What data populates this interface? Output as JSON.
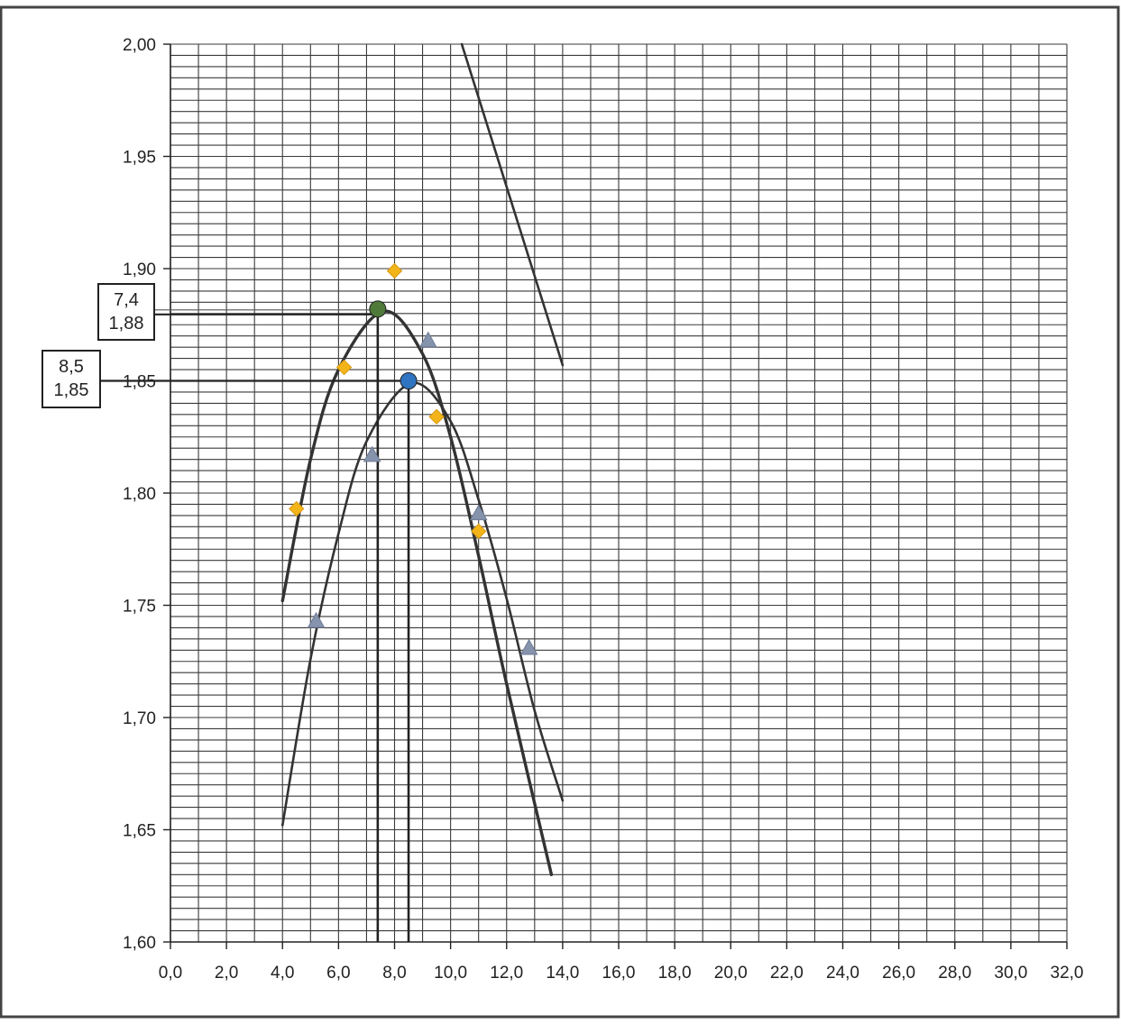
{
  "chart_data": {
    "type": "scatter",
    "xlim": [
      0,
      32
    ],
    "ylim": [
      1.6,
      2.0
    ],
    "x_ticks": [
      "0,0",
      "2,0",
      "4,0",
      "6,0",
      "8,0",
      "10,0",
      "12,0",
      "14,0",
      "16,0",
      "18,0",
      "20,0",
      "22,0",
      "24,0",
      "26,0",
      "28,0",
      "30,0",
      "32,0"
    ],
    "y_ticks": [
      "1,60",
      "1,65",
      "1,70",
      "1,75",
      "1,80",
      "1,85",
      "1,90",
      "1,95",
      "2,00"
    ],
    "grid": true,
    "series": [
      {
        "marker": "diamond",
        "color": "#f2b418",
        "points": [
          [
            4.5,
            1.793
          ],
          [
            6.2,
            1.856
          ],
          [
            8.0,
            1.899
          ],
          [
            9.5,
            1.834
          ],
          [
            11.0,
            1.783
          ]
        ]
      },
      {
        "marker": "triangle",
        "color": "#8593ad",
        "points": [
          [
            5.2,
            1.743
          ],
          [
            7.2,
            1.817
          ],
          [
            9.2,
            1.868
          ],
          [
            11.0,
            1.791
          ],
          [
            12.8,
            1.731
          ]
        ]
      }
    ],
    "curves": [
      {
        "kind": "parabola",
        "vertex": [
          7.6,
          1.881
        ],
        "points": [
          [
            4.0,
            1.752
          ],
          [
            5.0,
            1.815
          ],
          [
            6.0,
            1.855
          ],
          [
            7.6,
            1.881
          ],
          [
            9.0,
            1.862
          ],
          [
            10.0,
            1.825
          ],
          [
            11.0,
            1.772
          ],
          [
            12.0,
            1.715
          ],
          [
            13.6,
            1.63
          ]
        ],
        "color": "#333333"
      },
      {
        "kind": "parabola",
        "vertex": [
          8.6,
          1.849
        ],
        "points": [
          [
            4.0,
            1.652
          ],
          [
            5.0,
            1.726
          ],
          [
            6.0,
            1.782
          ],
          [
            7.0,
            1.823
          ],
          [
            8.6,
            1.849
          ],
          [
            10.0,
            1.832
          ],
          [
            11.0,
            1.797
          ],
          [
            12.0,
            1.753
          ],
          [
            13.0,
            1.703
          ],
          [
            14.0,
            1.663
          ]
        ],
        "color": "#333333"
      },
      {
        "kind": "line",
        "points": [
          [
            10.4,
            2.0
          ],
          [
            14.0,
            1.857
          ]
        ],
        "color": "#333333"
      }
    ],
    "highlight_points": [
      {
        "x": 7.4,
        "y": 1.882,
        "color": "#4f7a3a"
      },
      {
        "x": 8.5,
        "y": 1.85,
        "color": "#2f74c0"
      }
    ],
    "annotations": [
      {
        "lines": [
          "7,4",
          "1,88"
        ],
        "x": 7.4,
        "y": 1.88
      },
      {
        "lines": [
          "8,5",
          "1,85"
        ],
        "x": 8.5,
        "y": 1.85
      }
    ]
  }
}
